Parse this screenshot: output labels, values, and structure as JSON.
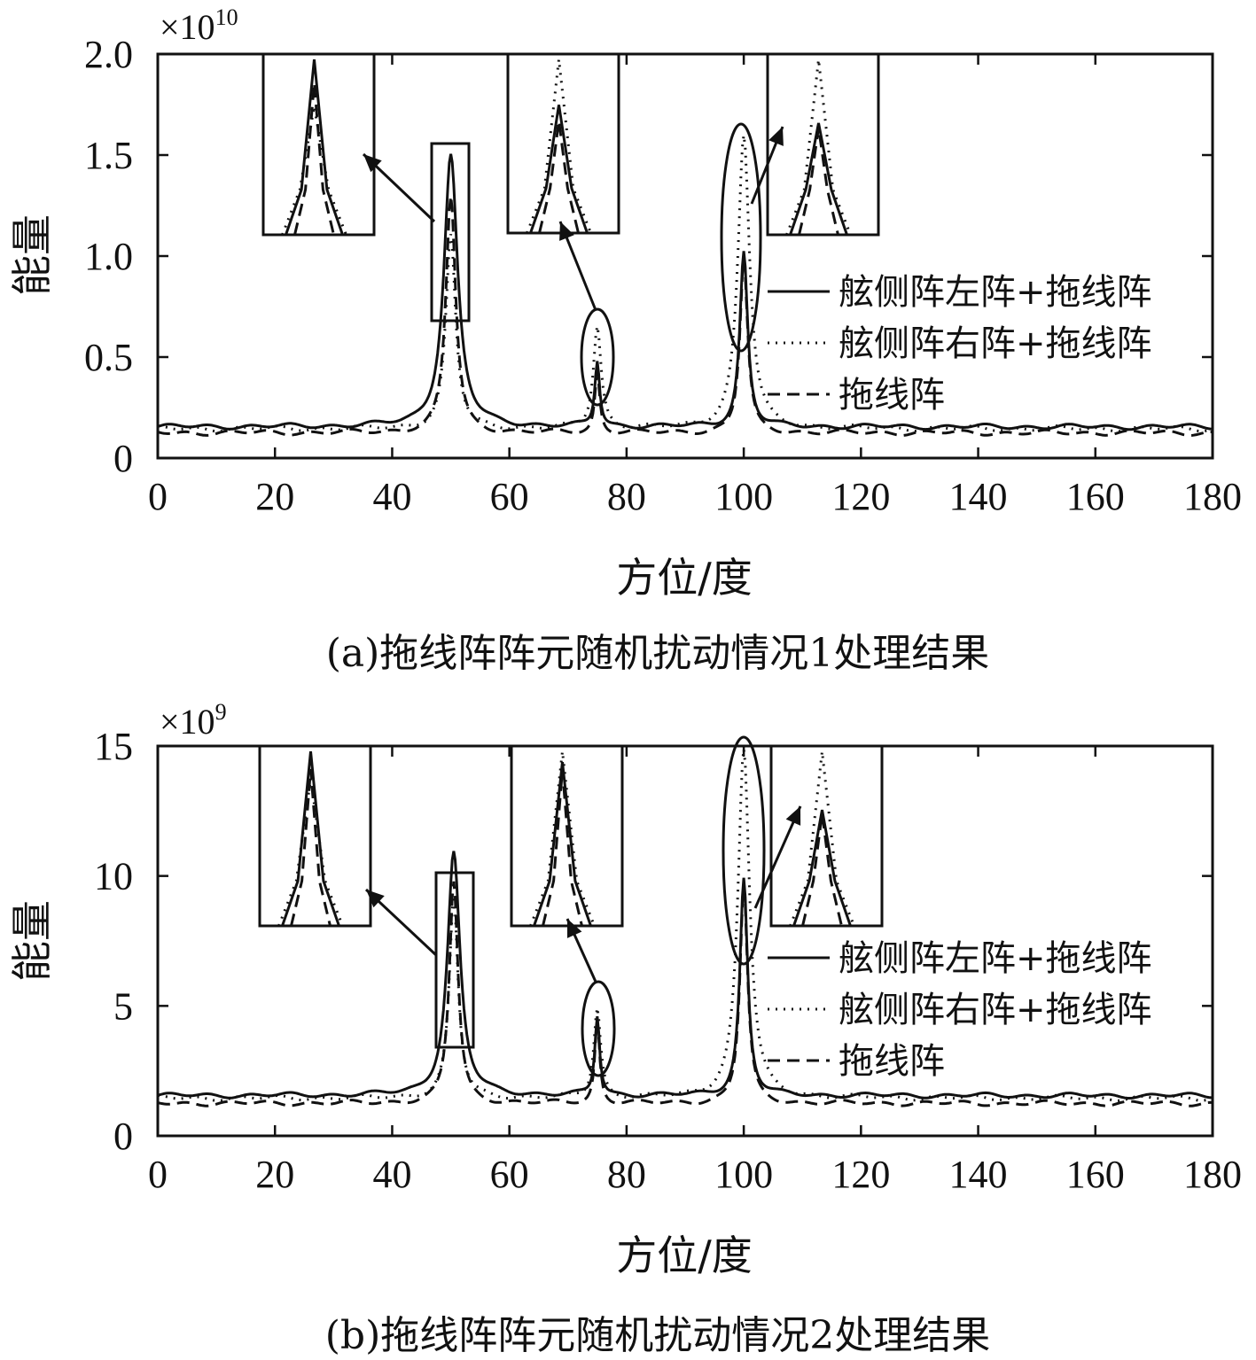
{
  "figure": {
    "captions": [
      "(a)拖线阵阵元随机扰动情况1处理结果",
      "(b)拖线阵阵元随机扰动情况2处理结果"
    ]
  },
  "chart_data": [
    {
      "type": "line",
      "panel": "a",
      "caption": "(a)拖线阵阵元随机扰动情况1处理结果",
      "xlabel": "方位/度",
      "ylabel": "能量",
      "y_multiplier": "×10",
      "y_multiplier_exp": "10",
      "xlim": [
        0,
        180
      ],
      "ylim": [
        0,
        2.0
      ],
      "x_ticks": [
        0,
        20,
        40,
        60,
        80,
        100,
        120,
        140,
        160,
        180
      ],
      "x_tick_labels": [
        "0",
        "20",
        "40",
        "60",
        "80",
        "100",
        "120",
        "140",
        "160",
        "180"
      ],
      "y_ticks": [
        0,
        0.5,
        1.0,
        1.5,
        2.0
      ],
      "y_tick_labels": [
        "0",
        "0.5",
        "1.0",
        "1.5",
        "2.0"
      ],
      "legend_position": "right",
      "series": [
        {
          "name": "舷侧阵左阵+拖线阵",
          "style": "solid",
          "baseline": 0.155,
          "peaks": [
            {
              "x": 50,
              "y": 1.5,
              "width": 1.4
            },
            {
              "x": 75,
              "y": 0.48,
              "width": 0.5
            },
            {
              "x": 100,
              "y": 1.02,
              "width": 0.8
            }
          ]
        },
        {
          "name": "舷侧阵右阵+拖线阵",
          "style": "dotted",
          "baseline": 0.145,
          "peaks": [
            {
              "x": 50,
              "y": 1.1,
              "width": 1.0
            },
            {
              "x": 75,
              "y": 0.65,
              "width": 0.8
            },
            {
              "x": 100,
              "y": 1.6,
              "width": 1.2
            }
          ]
        },
        {
          "name": "拖线阵",
          "style": "dashed",
          "baseline": 0.125,
          "peaks": [
            {
              "x": 50,
              "y": 1.3,
              "width": 1.0
            },
            {
              "x": 75,
              "y": 0.42,
              "width": 0.5
            },
            {
              "x": 100,
              "y": 0.98,
              "width": 0.8
            }
          ]
        }
      ]
    },
    {
      "type": "line",
      "panel": "b",
      "caption": "(b)拖线阵阵元随机扰动情况2处理结果",
      "xlabel": "方位/度",
      "ylabel": "能量",
      "y_multiplier": "×10",
      "y_multiplier_exp": "9",
      "xlim": [
        0,
        180
      ],
      "ylim": [
        0,
        15
      ],
      "x_ticks": [
        0,
        20,
        40,
        60,
        80,
        100,
        120,
        140,
        160,
        180
      ],
      "x_tick_labels": [
        "0",
        "20",
        "40",
        "60",
        "80",
        "100",
        "120",
        "140",
        "160",
        "180"
      ],
      "y_ticks": [
        0,
        5,
        10,
        15
      ],
      "y_tick_labels": [
        "0",
        "5",
        "10",
        "15"
      ],
      "legend_position": "right",
      "series": [
        {
          "name": "舷侧阵左阵+拖线阵",
          "style": "solid",
          "baseline": 1.55,
          "peaks": [
            {
              "x": 50.5,
              "y": 10.9,
              "width": 1.3
            },
            {
              "x": 75,
              "y": 4.6,
              "width": 0.5
            },
            {
              "x": 100,
              "y": 9.9,
              "width": 0.8
            }
          ]
        },
        {
          "name": "舷侧阵右阵+拖线阵",
          "style": "dotted",
          "baseline": 1.45,
          "peaks": [
            {
              "x": 50.5,
              "y": 9.2,
              "width": 0.9
            },
            {
              "x": 75,
              "y": 4.9,
              "width": 0.7
            },
            {
              "x": 100,
              "y": 14.9,
              "width": 1.2
            }
          ]
        },
        {
          "name": "拖线阵",
          "style": "dashed",
          "baseline": 1.25,
          "peaks": [
            {
              "x": 50.5,
              "y": 9.8,
              "width": 0.9
            },
            {
              "x": 75,
              "y": 4.4,
              "width": 0.5
            },
            {
              "x": 100,
              "y": 9.6,
              "width": 0.8
            }
          ]
        }
      ]
    }
  ]
}
